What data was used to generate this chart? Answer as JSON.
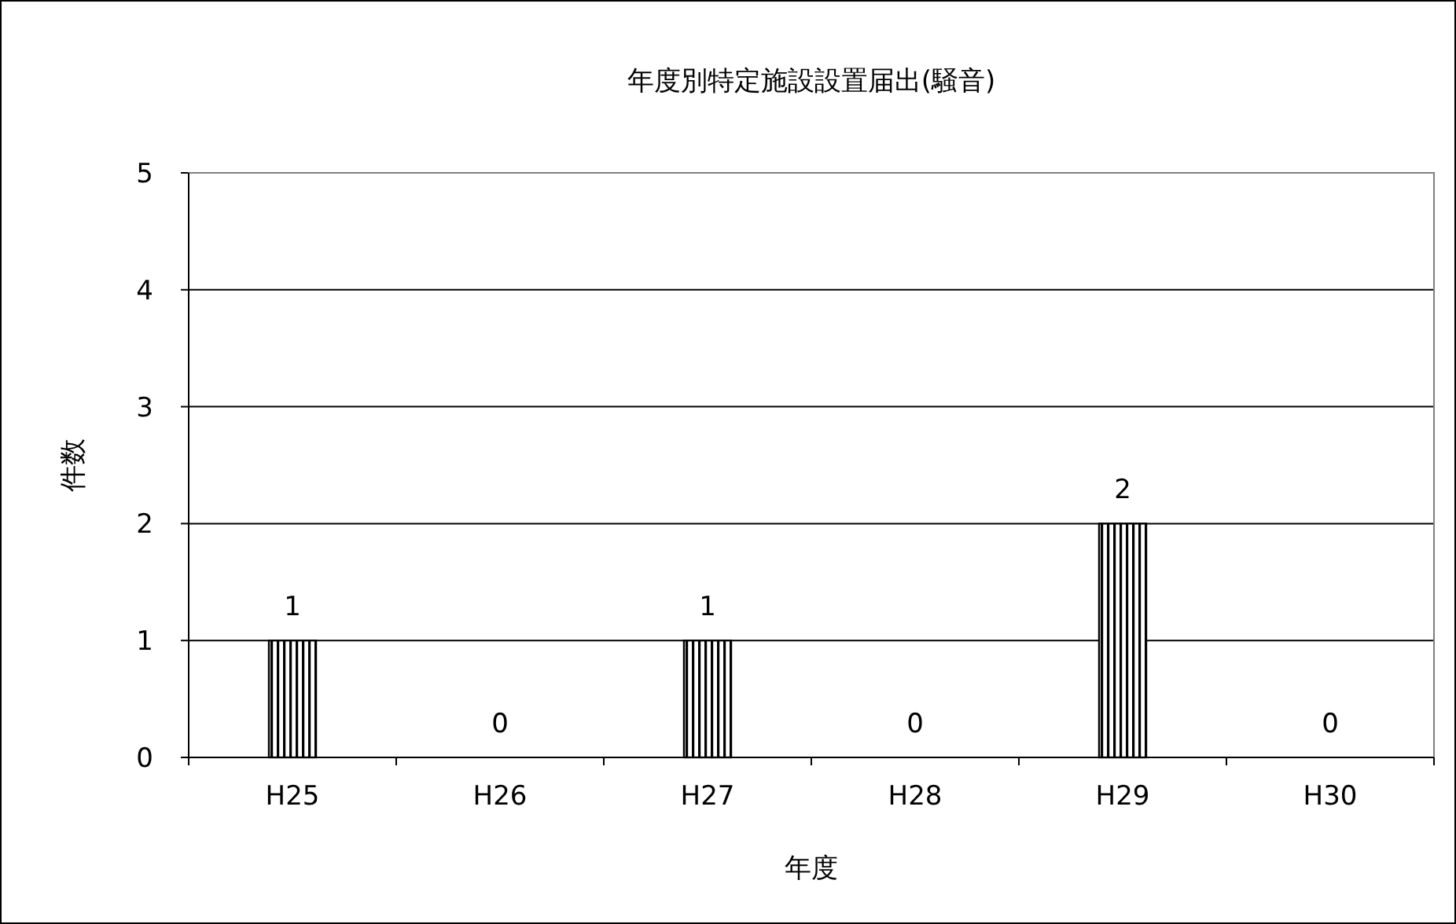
{
  "chart_data": {
    "type": "bar",
    "title": "年度別特定施設設置届出(騒音)",
    "xlabel": "年度",
    "ylabel": "件数",
    "categories": [
      "H25",
      "H26",
      "H27",
      "H28",
      "H29",
      "H30"
    ],
    "values": [
      1,
      0,
      1,
      0,
      2,
      0
    ],
    "color": "#000000",
    "ylim": [
      0,
      5
    ],
    "yticks": [
      0,
      1,
      2,
      3,
      4,
      5
    ],
    "grid": "y",
    "data_labels": true
  }
}
